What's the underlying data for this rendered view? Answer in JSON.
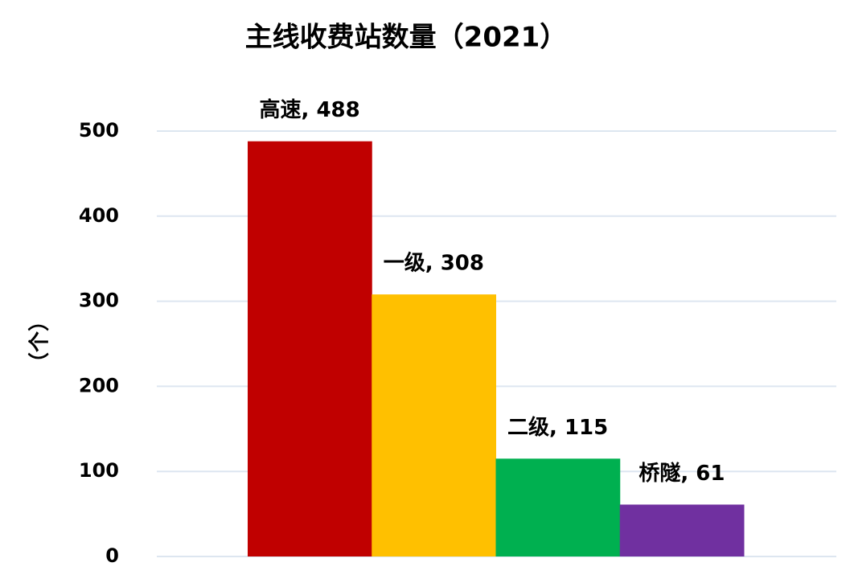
{
  "chart_data": {
    "type": "bar",
    "title": "主线收费站数量（2021）",
    "y_label": "（个）",
    "values": [
      488,
      308,
      115,
      61
    ],
    "value_labels": [
      "高速, 488",
      "一级, 308",
      "二级, 115",
      "桥隧, 61"
    ],
    "colors": [
      "#c00000",
      "#ffc000",
      "#00b050",
      "#7030a0"
    ],
    "ylim": [
      0,
      500
    ],
    "yticks": [
      0,
      100,
      200,
      300,
      400,
      500
    ],
    "grid": true
  }
}
